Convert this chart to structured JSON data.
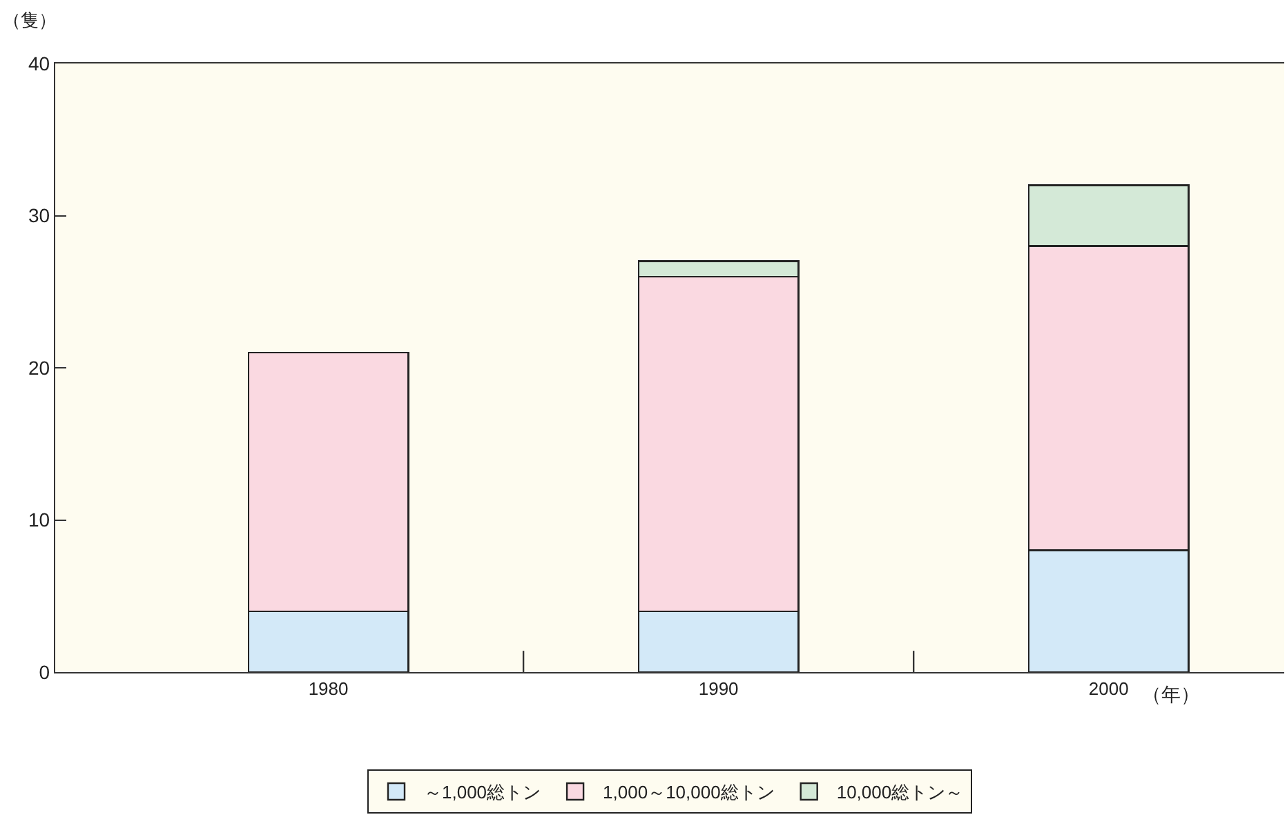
{
  "chart_data": {
    "type": "bar",
    "stacked": true,
    "ylabel": "（隻）",
    "xlabel": "（年）",
    "categories": [
      "1980",
      "1990",
      "2000"
    ],
    "series": [
      {
        "name": "～1,000総トン",
        "color": "#d3e9f8",
        "values": [
          4,
          4,
          8
        ]
      },
      {
        "name": "1,000～10,000総トン",
        "color": "#fad9e1",
        "values": [
          17,
          22,
          20
        ]
      },
      {
        "name": "10,000総トン～",
        "color": "#d4e9d7",
        "values": [
          null,
          1,
          4
        ]
      }
    ],
    "ylim": [
      0,
      40
    ],
    "yticks": [
      0,
      10,
      20,
      30,
      40
    ],
    "grid": false,
    "legend": "bottom"
  }
}
